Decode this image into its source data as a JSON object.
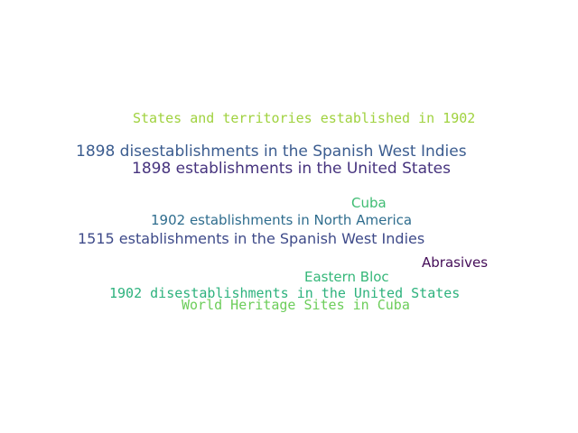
{
  "words": [
    {
      "text": "States and territories established in 1902",
      "color": "#a0d23f",
      "font": "mono"
    },
    {
      "text": "1898 disestablishments in the Spanish West Indies",
      "color": "#3b5c8f",
      "font": "sans"
    },
    {
      "text": "1898 establishments in the United States",
      "color": "#46337e",
      "font": "sans"
    },
    {
      "text": "Cuba",
      "color": "#3fbc73",
      "font": "sans"
    },
    {
      "text": "1902 establishments in North America",
      "color": "#2f6d8e",
      "font": "sans"
    },
    {
      "text": "1515 establishments in the Spanish West Indies",
      "color": "#3e4a89",
      "font": "sans"
    },
    {
      "text": "Abrasives",
      "color": "#440d58",
      "font": "sans"
    },
    {
      "text": "Eastern Bloc",
      "color": "#35b779",
      "font": "sans"
    },
    {
      "text": "1902 disestablishments in the United States",
      "color": "#2db27d",
      "font": "mono"
    },
    {
      "text": "World Heritage Sites in Cuba",
      "color": "#6ccd5a",
      "font": "mono"
    }
  ]
}
